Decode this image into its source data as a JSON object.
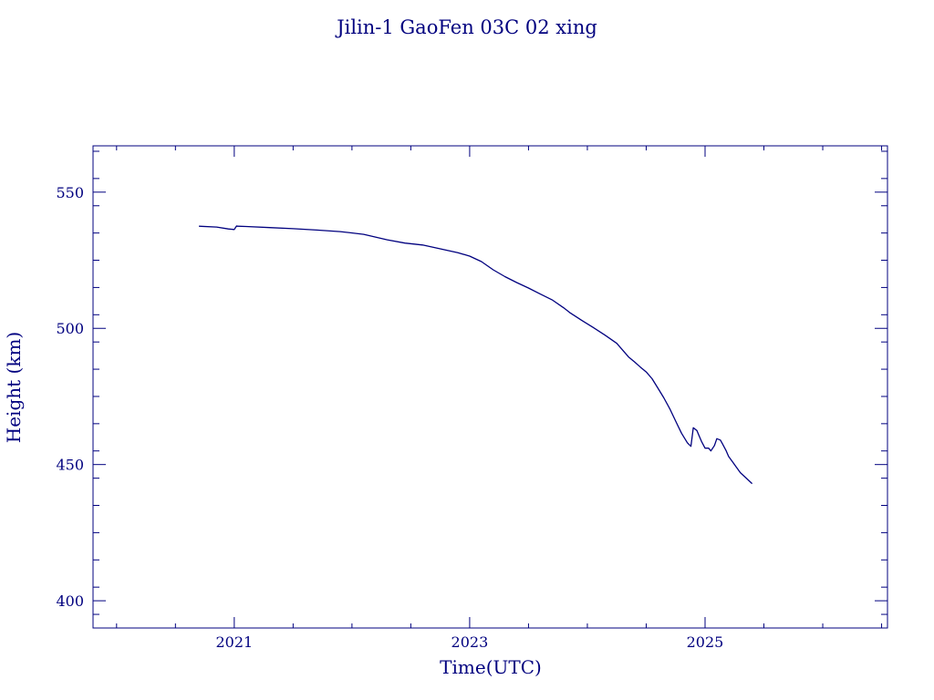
{
  "colors": {
    "ink": "#00007f",
    "background": "#ffffff"
  },
  "chart_data": {
    "type": "line",
    "title": "Jilin-1 GaoFen 03C 02 xing",
    "xlabel": "Time(UTC)",
    "ylabel": "Height (km)",
    "xlim": [
      2019.8,
      2026.55
    ],
    "ylim": [
      390,
      567
    ],
    "xticks": [
      2021,
      2023,
      2025
    ],
    "yticks": [
      400,
      450,
      500,
      550
    ],
    "grid": false,
    "series": [
      {
        "x": [
          2020.7,
          2020.85,
          2020.95,
          2021.0,
          2021.02,
          2021.03,
          2021.1,
          2021.3,
          2021.5,
          2021.7,
          2021.9,
          2022.1,
          2022.3,
          2022.45,
          2022.6,
          2022.75,
          2022.9,
          2023.0,
          2023.1,
          2023.2,
          2023.3,
          2023.4,
          2023.5,
          2023.6,
          2023.7,
          2023.8,
          2023.85,
          2023.95,
          2024.05,
          2024.15,
          2024.25,
          2024.3,
          2024.35,
          2024.4,
          2024.45,
          2024.5,
          2024.55,
          2024.6,
          2024.65,
          2024.7,
          2024.75,
          2024.8,
          2024.85,
          2024.88,
          2024.9,
          2024.93,
          2024.95,
          2024.97,
          2025.0,
          2025.03,
          2025.05,
          2025.08,
          2025.1,
          2025.13,
          2025.15,
          2025.18,
          2025.2,
          2025.25,
          2025.3,
          2025.35,
          2025.4
        ],
        "y": [
          537.5,
          537.2,
          536.5,
          536.3,
          537.6,
          537.5,
          537.4,
          537.0,
          536.6,
          536.1,
          535.5,
          534.5,
          532.5,
          531.3,
          530.6,
          529.2,
          527.8,
          526.5,
          524.5,
          521.5,
          519.0,
          516.8,
          514.8,
          512.6,
          510.5,
          507.5,
          505.8,
          503.0,
          500.3,
          497.5,
          494.5,
          492.0,
          489.5,
          487.7,
          485.8,
          484.0,
          481.5,
          478.0,
          474.5,
          470.5,
          466.0,
          461.5,
          458.0,
          456.7,
          463.5,
          462.5,
          460.5,
          458.5,
          456.0,
          456.0,
          455.0,
          457.0,
          459.5,
          459.0,
          457.5,
          455.0,
          453.0,
          450.0,
          447.0,
          445.0,
          443.0
        ]
      }
    ]
  }
}
